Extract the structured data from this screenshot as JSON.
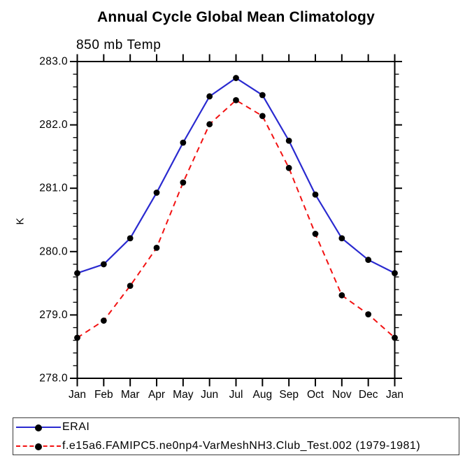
{
  "title": "Annual Cycle Global Mean Climatology",
  "subtitle": "850 mb Temp",
  "ylabel": "K",
  "legend": {
    "position": "bottom-left",
    "entries": [
      {
        "label": "ERAI",
        "color": "#2a2ad0",
        "line_style": "solid",
        "marker": "black-dot"
      },
      {
        "label": "f.e15a6.FAMIPC5.ne0np4-VarMeshNH3.Club_Test.002 (1979-1981)",
        "color": "#f21212",
        "line_style": "dashed",
        "marker": "black-dot"
      }
    ]
  },
  "chart_data": {
    "type": "line",
    "title": "Annual Cycle Global Mean Climatology",
    "subtitle": "850 mb Temp",
    "xlabel": "",
    "ylabel": "K",
    "categories": [
      "Jan",
      "Feb",
      "Mar",
      "Apr",
      "May",
      "Jun",
      "Jul",
      "Aug",
      "Sep",
      "Oct",
      "Nov",
      "Dec",
      "Jan"
    ],
    "series": [
      {
        "name": "ERAI",
        "color": "#2a2ad0",
        "line_style": "solid",
        "marker": "circle",
        "marker_color": "#000000",
        "values": [
          279.66,
          279.8,
          280.21,
          280.93,
          281.72,
          282.45,
          282.74,
          282.47,
          281.75,
          280.9,
          280.21,
          279.87,
          279.66
        ]
      },
      {
        "name": "f.e15a6.FAMIPC5.ne0np4-VarMeshNH3.Club_Test.002 (1979-1981)",
        "color": "#f21212",
        "line_style": "dashed",
        "marker": "circle",
        "marker_color": "#000000",
        "values": [
          278.64,
          278.91,
          279.46,
          280.06,
          281.09,
          282.01,
          282.39,
          282.14,
          281.32,
          280.28,
          279.31,
          279.01,
          278.64
        ]
      }
    ],
    "ylim": [
      278.0,
      283.0
    ],
    "y_major_step": 1.0,
    "y_minor_step": 0.2,
    "y_tick_labels": [
      "283.0",
      "282.0",
      "281.0",
      "280.0",
      "279.0",
      "278.0"
    ],
    "grid": false,
    "tick_direction": "outward",
    "legend_position": "bottom-left"
  }
}
